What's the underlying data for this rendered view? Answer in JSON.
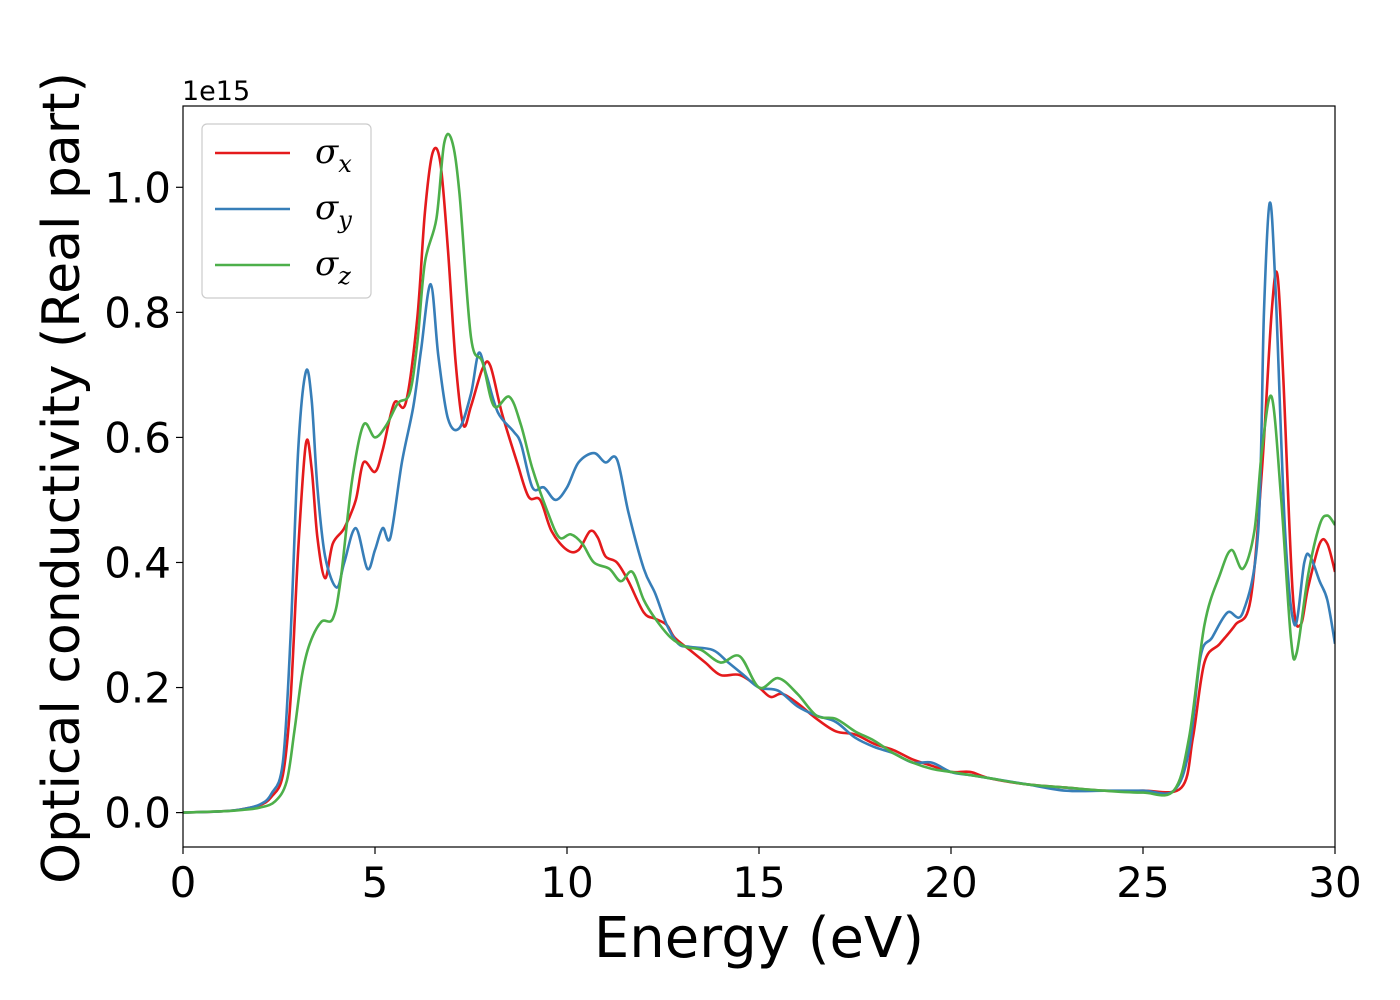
{
  "chart_data": {
    "type": "line",
    "title": "",
    "xlabel": "Energy (eV)",
    "ylabel": "Optical conductivity (Real part)",
    "y_scale_label": "1e15",
    "xlim": [
      0,
      30
    ],
    "ylim": [
      -0.055,
      1.13
    ],
    "xticks": [
      0,
      5,
      10,
      15,
      20,
      25,
      30
    ],
    "xtick_labels": [
      "0",
      "5",
      "10",
      "15",
      "20",
      "25",
      "30"
    ],
    "yticks": [
      0.0,
      0.2,
      0.4,
      0.6,
      0.8,
      1.0
    ],
    "ytick_labels": [
      "0.0",
      "0.2",
      "0.4",
      "0.6",
      "0.8",
      "1.0"
    ],
    "grid": false,
    "legend_position": "top-left",
    "series": [
      {
        "name": "σx",
        "name_base": "σ",
        "name_sub": "x",
        "color": "#e41a1c",
        "points": [
          [
            0,
            0
          ],
          [
            1,
            0.002
          ],
          [
            1.5,
            0.005
          ],
          [
            2,
            0.012
          ],
          [
            2.3,
            0.025
          ],
          [
            2.6,
            0.06
          ],
          [
            2.8,
            0.18
          ],
          [
            3.0,
            0.42
          ],
          [
            3.2,
            0.59
          ],
          [
            3.35,
            0.55
          ],
          [
            3.5,
            0.44
          ],
          [
            3.7,
            0.375
          ],
          [
            3.9,
            0.43
          ],
          [
            4.2,
            0.455
          ],
          [
            4.5,
            0.5
          ],
          [
            4.7,
            0.56
          ],
          [
            5.0,
            0.545
          ],
          [
            5.2,
            0.58
          ],
          [
            5.5,
            0.655
          ],
          [
            5.8,
            0.655
          ],
          [
            6.1,
            0.79
          ],
          [
            6.3,
            0.96
          ],
          [
            6.5,
            1.055
          ],
          [
            6.7,
            1.04
          ],
          [
            6.9,
            0.9
          ],
          [
            7.1,
            0.72
          ],
          [
            7.3,
            0.62
          ],
          [
            7.5,
            0.65
          ],
          [
            7.8,
            0.71
          ],
          [
            8.0,
            0.715
          ],
          [
            8.3,
            0.64
          ],
          [
            8.7,
            0.56
          ],
          [
            9.0,
            0.505
          ],
          [
            9.3,
            0.5
          ],
          [
            9.6,
            0.45
          ],
          [
            10.0,
            0.42
          ],
          [
            10.3,
            0.42
          ],
          [
            10.6,
            0.45
          ],
          [
            10.8,
            0.44
          ],
          [
            11.0,
            0.41
          ],
          [
            11.3,
            0.4
          ],
          [
            11.6,
            0.37
          ],
          [
            12.0,
            0.32
          ],
          [
            12.3,
            0.31
          ],
          [
            12.6,
            0.3
          ],
          [
            12.8,
            0.28
          ],
          [
            13.2,
            0.26
          ],
          [
            13.6,
            0.24
          ],
          [
            14.0,
            0.22
          ],
          [
            14.5,
            0.22
          ],
          [
            15.0,
            0.2
          ],
          [
            15.3,
            0.185
          ],
          [
            15.6,
            0.19
          ],
          [
            16.0,
            0.175
          ],
          [
            16.5,
            0.15
          ],
          [
            17.0,
            0.13
          ],
          [
            17.5,
            0.125
          ],
          [
            18.0,
            0.11
          ],
          [
            18.5,
            0.1
          ],
          [
            19.0,
            0.085
          ],
          [
            19.5,
            0.075
          ],
          [
            20.0,
            0.065
          ],
          [
            20.5,
            0.065
          ],
          [
            21.0,
            0.055
          ],
          [
            22.0,
            0.045
          ],
          [
            23.0,
            0.04
          ],
          [
            24.0,
            0.035
          ],
          [
            25.0,
            0.035
          ],
          [
            26.0,
            0.04
          ],
          [
            26.3,
            0.12
          ],
          [
            26.6,
            0.24
          ],
          [
            27.0,
            0.27
          ],
          [
            27.4,
            0.3
          ],
          [
            27.8,
            0.34
          ],
          [
            28.1,
            0.55
          ],
          [
            28.35,
            0.8
          ],
          [
            28.5,
            0.86
          ],
          [
            28.65,
            0.7
          ],
          [
            28.9,
            0.35
          ],
          [
            29.1,
            0.3
          ],
          [
            29.3,
            0.36
          ],
          [
            29.6,
            0.43
          ],
          [
            29.8,
            0.43
          ],
          [
            30.0,
            0.385
          ]
        ]
      },
      {
        "name": "σy",
        "name_base": "σ",
        "name_sub": "y",
        "color": "#377eb8",
        "points": [
          [
            0,
            0
          ],
          [
            1,
            0.002
          ],
          [
            1.5,
            0.005
          ],
          [
            2,
            0.013
          ],
          [
            2.3,
            0.03
          ],
          [
            2.6,
            0.08
          ],
          [
            2.8,
            0.28
          ],
          [
            3.0,
            0.58
          ],
          [
            3.2,
            0.705
          ],
          [
            3.35,
            0.66
          ],
          [
            3.5,
            0.52
          ],
          [
            3.7,
            0.41
          ],
          [
            4.0,
            0.36
          ],
          [
            4.2,
            0.4
          ],
          [
            4.5,
            0.455
          ],
          [
            4.8,
            0.39
          ],
          [
            5.0,
            0.42
          ],
          [
            5.2,
            0.455
          ],
          [
            5.4,
            0.44
          ],
          [
            5.7,
            0.56
          ],
          [
            6.0,
            0.65
          ],
          [
            6.2,
            0.74
          ],
          [
            6.45,
            0.845
          ],
          [
            6.65,
            0.73
          ],
          [
            6.9,
            0.63
          ],
          [
            7.2,
            0.615
          ],
          [
            7.5,
            0.67
          ],
          [
            7.7,
            0.735
          ],
          [
            7.9,
            0.7
          ],
          [
            8.2,
            0.64
          ],
          [
            8.6,
            0.61
          ],
          [
            8.8,
            0.59
          ],
          [
            9.1,
            0.52
          ],
          [
            9.4,
            0.52
          ],
          [
            9.7,
            0.5
          ],
          [
            10.0,
            0.52
          ],
          [
            10.3,
            0.56
          ],
          [
            10.7,
            0.575
          ],
          [
            11.0,
            0.56
          ],
          [
            11.3,
            0.565
          ],
          [
            11.6,
            0.48
          ],
          [
            12.0,
            0.39
          ],
          [
            12.3,
            0.35
          ],
          [
            12.6,
            0.3
          ],
          [
            12.9,
            0.27
          ],
          [
            13.2,
            0.265
          ],
          [
            13.8,
            0.26
          ],
          [
            14.2,
            0.24
          ],
          [
            14.6,
            0.22
          ],
          [
            15.0,
            0.2
          ],
          [
            15.5,
            0.195
          ],
          [
            16.0,
            0.17
          ],
          [
            16.5,
            0.155
          ],
          [
            17.0,
            0.145
          ],
          [
            17.5,
            0.12
          ],
          [
            18.0,
            0.105
          ],
          [
            18.5,
            0.095
          ],
          [
            19.0,
            0.08
          ],
          [
            19.5,
            0.08
          ],
          [
            20.0,
            0.065
          ],
          [
            20.5,
            0.06
          ],
          [
            21.0,
            0.055
          ],
          [
            22.0,
            0.045
          ],
          [
            23.0,
            0.035
          ],
          [
            24.0,
            0.035
          ],
          [
            25.0,
            0.035
          ],
          [
            25.8,
            0.035
          ],
          [
            26.2,
            0.1
          ],
          [
            26.5,
            0.25
          ],
          [
            26.8,
            0.28
          ],
          [
            27.2,
            0.32
          ],
          [
            27.6,
            0.32
          ],
          [
            28.0,
            0.45
          ],
          [
            28.15,
            0.8
          ],
          [
            28.3,
            0.975
          ],
          [
            28.45,
            0.84
          ],
          [
            28.7,
            0.45
          ],
          [
            28.95,
            0.3
          ],
          [
            29.2,
            0.4
          ],
          [
            29.35,
            0.41
          ],
          [
            29.6,
            0.37
          ],
          [
            29.8,
            0.34
          ],
          [
            30.0,
            0.27
          ]
        ]
      },
      {
        "name": "σz",
        "name_base": "σ",
        "name_sub": "z",
        "color": "#4daf4a",
        "points": [
          [
            0,
            0
          ],
          [
            1,
            0.002
          ],
          [
            1.5,
            0.004
          ],
          [
            2,
            0.008
          ],
          [
            2.4,
            0.018
          ],
          [
            2.7,
            0.05
          ],
          [
            2.9,
            0.13
          ],
          [
            3.1,
            0.22
          ],
          [
            3.3,
            0.27
          ],
          [
            3.6,
            0.305
          ],
          [
            3.9,
            0.31
          ],
          [
            4.1,
            0.37
          ],
          [
            4.4,
            0.53
          ],
          [
            4.7,
            0.62
          ],
          [
            5.0,
            0.6
          ],
          [
            5.3,
            0.62
          ],
          [
            5.6,
            0.655
          ],
          [
            5.9,
            0.67
          ],
          [
            6.1,
            0.75
          ],
          [
            6.3,
            0.88
          ],
          [
            6.6,
            0.95
          ],
          [
            6.8,
            1.07
          ],
          [
            7.0,
            1.075
          ],
          [
            7.2,
            0.99
          ],
          [
            7.5,
            0.76
          ],
          [
            7.8,
            0.72
          ],
          [
            8.1,
            0.65
          ],
          [
            8.5,
            0.665
          ],
          [
            8.8,
            0.62
          ],
          [
            9.1,
            0.55
          ],
          [
            9.5,
            0.48
          ],
          [
            9.8,
            0.44
          ],
          [
            10.1,
            0.445
          ],
          [
            10.4,
            0.43
          ],
          [
            10.7,
            0.4
          ],
          [
            11.1,
            0.39
          ],
          [
            11.4,
            0.37
          ],
          [
            11.7,
            0.385
          ],
          [
            12.0,
            0.34
          ],
          [
            12.3,
            0.31
          ],
          [
            12.7,
            0.28
          ],
          [
            13.1,
            0.265
          ],
          [
            13.5,
            0.26
          ],
          [
            14.0,
            0.24
          ],
          [
            14.5,
            0.25
          ],
          [
            15.0,
            0.2
          ],
          [
            15.5,
            0.215
          ],
          [
            16.0,
            0.19
          ],
          [
            16.5,
            0.155
          ],
          [
            17.0,
            0.15
          ],
          [
            17.5,
            0.13
          ],
          [
            18.0,
            0.115
          ],
          [
            18.5,
            0.095
          ],
          [
            19.0,
            0.08
          ],
          [
            19.5,
            0.07
          ],
          [
            20.0,
            0.065
          ],
          [
            20.5,
            0.06
          ],
          [
            21.0,
            0.055
          ],
          [
            22.0,
            0.045
          ],
          [
            23.0,
            0.04
          ],
          [
            24.0,
            0.035
          ],
          [
            25.0,
            0.032
          ],
          [
            25.8,
            0.035
          ],
          [
            26.2,
            0.12
          ],
          [
            26.6,
            0.3
          ],
          [
            27.0,
            0.38
          ],
          [
            27.3,
            0.42
          ],
          [
            27.6,
            0.39
          ],
          [
            27.9,
            0.45
          ],
          [
            28.1,
            0.58
          ],
          [
            28.35,
            0.665
          ],
          [
            28.6,
            0.5
          ],
          [
            28.85,
            0.28
          ],
          [
            29.0,
            0.255
          ],
          [
            29.3,
            0.38
          ],
          [
            29.6,
            0.46
          ],
          [
            29.8,
            0.475
          ],
          [
            30.0,
            0.46
          ]
        ]
      }
    ]
  }
}
